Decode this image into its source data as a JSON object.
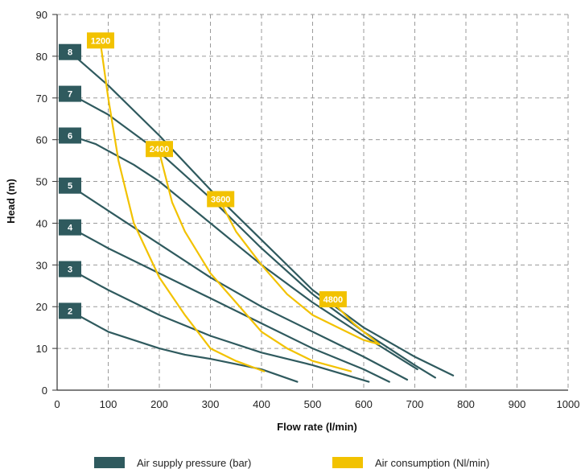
{
  "chart_data": {
    "type": "line",
    "title": "",
    "xlabel": "Flow rate (l/min)",
    "ylabel": "Head (m)",
    "xlim": [
      0,
      1000
    ],
    "ylim": [
      0,
      90
    ],
    "x_ticks": [
      "0",
      "100",
      "200",
      "300",
      "400",
      "500",
      "600",
      "700",
      "800",
      "900",
      "1000"
    ],
    "y_ticks": [
      "0",
      "10",
      "20",
      "30",
      "40",
      "50",
      "60",
      "70",
      "80",
      "90"
    ],
    "grid": true,
    "legend_position": "bottom",
    "legend": [
      {
        "label": "Air supply pressure (bar)",
        "color": "#2f5a5e"
      },
      {
        "label": "Air consumption (Nl/min)",
        "color": "#f2c200"
      }
    ],
    "series": [
      {
        "group": "pressure",
        "label": "2",
        "color": "#2f5a5e",
        "points": [
          [
            25,
            19
          ],
          [
            100,
            14
          ],
          [
            200,
            10
          ],
          [
            250,
            8.5
          ],
          [
            300,
            7.5
          ],
          [
            400,
            5
          ],
          [
            470,
            2
          ]
        ]
      },
      {
        "group": "pressure",
        "label": "3",
        "color": "#2f5a5e",
        "points": [
          [
            25,
            29
          ],
          [
            100,
            24
          ],
          [
            200,
            18
          ],
          [
            300,
            13
          ],
          [
            400,
            9
          ],
          [
            500,
            6
          ],
          [
            610,
            2
          ]
        ]
      },
      {
        "group": "pressure",
        "label": "4",
        "color": "#2f5a5e",
        "points": [
          [
            25,
            39
          ],
          [
            100,
            34
          ],
          [
            200,
            28
          ],
          [
            300,
            22
          ],
          [
            400,
            16
          ],
          [
            500,
            10
          ],
          [
            600,
            5
          ],
          [
            650,
            2
          ]
        ]
      },
      {
        "group": "pressure",
        "label": "5",
        "color": "#2f5a5e",
        "points": [
          [
            25,
            49
          ],
          [
            100,
            43
          ],
          [
            200,
            35
          ],
          [
            300,
            27
          ],
          [
            400,
            20
          ],
          [
            500,
            14
          ],
          [
            600,
            8
          ],
          [
            685,
            2.5
          ]
        ]
      },
      {
        "group": "pressure",
        "label": "6",
        "color": "#2f5a5e",
        "points": [
          [
            25,
            61
          ],
          [
            75,
            59
          ],
          [
            150,
            54
          ],
          [
            200,
            50
          ],
          [
            300,
            40
          ],
          [
            400,
            30
          ],
          [
            500,
            21
          ],
          [
            600,
            13
          ],
          [
            705,
            5
          ]
        ]
      },
      {
        "group": "pressure",
        "label": "7",
        "color": "#2f5a5e",
        "points": [
          [
            25,
            71
          ],
          [
            100,
            66
          ],
          [
            200,
            57
          ],
          [
            300,
            46
          ],
          [
            400,
            34
          ],
          [
            500,
            23
          ],
          [
            600,
            14
          ],
          [
            700,
            6
          ],
          [
            740,
            3
          ]
        ]
      },
      {
        "group": "pressure",
        "label": "8",
        "color": "#2f5a5e",
        "points": [
          [
            25,
            81
          ],
          [
            100,
            73
          ],
          [
            200,
            61
          ],
          [
            300,
            48
          ],
          [
            400,
            36
          ],
          [
            500,
            24
          ],
          [
            600,
            15
          ],
          [
            700,
            8
          ],
          [
            775,
            3.5
          ]
        ]
      },
      {
        "group": "air",
        "label": "1200",
        "color": "#f2c200",
        "points": [
          [
            85,
            83
          ],
          [
            100,
            70
          ],
          [
            120,
            55
          ],
          [
            150,
            40
          ],
          [
            200,
            27
          ],
          [
            250,
            18
          ],
          [
            300,
            10
          ],
          [
            350,
            7
          ],
          [
            405,
            4.5
          ]
        ]
      },
      {
        "group": "air",
        "label": "2400",
        "color": "#f2c200",
        "points": [
          [
            200,
            57
          ],
          [
            225,
            45
          ],
          [
            250,
            38
          ],
          [
            300,
            28
          ],
          [
            350,
            21
          ],
          [
            400,
            14
          ],
          [
            450,
            10
          ],
          [
            500,
            7
          ],
          [
            575,
            4.5
          ]
        ]
      },
      {
        "group": "air",
        "label": "3600",
        "color": "#f2c200",
        "points": [
          [
            320,
            45
          ],
          [
            350,
            38
          ],
          [
            400,
            30
          ],
          [
            450,
            23
          ],
          [
            500,
            18
          ],
          [
            550,
            15
          ],
          [
            600,
            12
          ],
          [
            630,
            11
          ]
        ]
      },
      {
        "group": "air",
        "label": "4800",
        "color": "#f2c200",
        "points": [
          [
            540,
            21
          ],
          [
            580,
            16
          ],
          [
            630,
            11
          ]
        ]
      }
    ]
  }
}
